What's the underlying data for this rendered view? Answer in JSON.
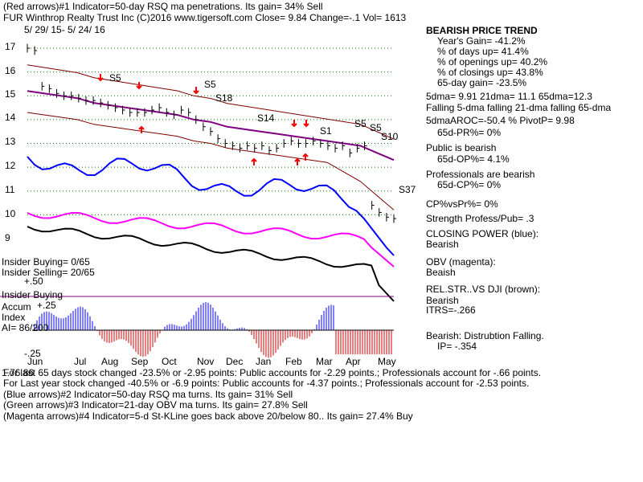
{
  "header": {
    "line1": "(Red arrows)#1 Indicator=50-day RSQ ma penetrations. Its gain= 34% Sell",
    "line2": "FUR  Winthrop Realty Trust Inc  (C)2016 www.tigersoft.com    Close=  9.84  Change=-.1 Vol= 1613",
    "daterange": "5/ 29/ 15- 5/ 24/ 16"
  },
  "right_panel": {
    "title": "BEARISH PRICE TREND",
    "year_gain": "Year's Gain= -41.2%",
    "days_up": "% of days up= 41.4%",
    "openings_up": "% of openings up= 40.2%",
    "closings_up": "% of closings up= 43.8%",
    "gain65": "65-day gain= -23.5%",
    "dma": "5dma= 9.91 21dma= 11.1 65dma=12.3",
    "falling": "Falling 5-dma falling 21-dma falling 65-dma",
    "aroc": "5dmaAROC=-50.4 %  PivotP= 9.98",
    "pr65": "65d-PR%= 0%",
    "public": "Public is bearish",
    "op65": "65d-OP%= 4.1%",
    "professionals": "Professionals are bearish",
    "cp65": "65d-CP%= 0%",
    "cpvspr": "CP%vsPr%=  0%",
    "strength": "Strength Profess/Pub= .3",
    "closing_power": "CLOSING POWER (blue):",
    "cp_state": "Bearish",
    "obv": "OBV (magenta):",
    "obv_state": "Beaish",
    "relstr": "REL.STR..VS DJI (brown):",
    "relstr_state": "Bearish",
    "itrs": "ITRS=-.266",
    "distribution": "Bearish: Distrubtion Falling.",
    "ip": "IP= -.354"
  },
  "left_labels": {
    "insider_buying": "Insider Buying= 0/65",
    "insider_selling": "Insider Selling= 20/65",
    "plus50": "+.50",
    "insider_buying2": "Insider Buying",
    "accum": "Accum",
    "plus25": "+.25",
    "index": "Index",
    "ai": "AI= 86/200",
    "minus25": "-.25"
  },
  "footer": {
    "line1": "For last 65 days stock changed -23.5% or -2.95 points:  Public accounts for -2.29 points.;  Professionals account for -.66 points.",
    "line2": "For Last year stock changed -40.5% or -6.9 points:  Public accounts for -4.37 points.;  Professionals account for -2.53 points.",
    "line3": "(Blue arrows)#2 Indicator=50-day RSQ ma turns. Its gain= 31% Sell",
    "line4": "(Green arrows)#3 Indicator=21-day OBV ma turns. Its gain= 27.8% Sell",
    "line5": "(Magenta arrows)#4 Indicator=5-d St-KLine goes back above 20/below 80.. Its gain= 27.4% Buy"
  },
  "overlap_label": "1.76.86",
  "colors": {
    "price": "#000000",
    "ma": "#800080",
    "band": "#800000",
    "closing_power": "#0000ff",
    "obv": "#ff00ff",
    "relstr": "#000000",
    "grid": "#008000",
    "accum_pos": "#0000ff",
    "accum_neg": "#cc0000",
    "arrow": "#ff0000"
  },
  "chart_data": {
    "type": "line",
    "y_ticks": [
      "17",
      "16",
      "15",
      "14",
      "13",
      "12",
      "11",
      "10",
      "9"
    ],
    "y_tick_values": [
      17,
      16,
      15,
      14,
      13,
      12,
      11,
      10,
      9
    ],
    "x_months": [
      "Jun",
      "Jul",
      "Aug",
      "Sep",
      "Oct",
      "Nov",
      "Dec",
      "Jan",
      "Feb",
      "Mar",
      "Apr",
      "May"
    ],
    "signals": [
      {
        "label": "S5",
        "x": "Aug"
      },
      {
        "label": "S5",
        "x": "Nov"
      },
      {
        "label": "S18",
        "x": "Nov"
      },
      {
        "label": "S14",
        "x": "Jan"
      },
      {
        "label": "S1",
        "x": "Mar"
      },
      {
        "label": "S5",
        "x": "Apr"
      },
      {
        "label": "S5",
        "x": "Apr"
      },
      {
        "label": "S10",
        "x": "May"
      },
      {
        "label": "S37",
        "x": "May"
      }
    ],
    "price_close": [
      17.0,
      16.9,
      15.4,
      15.3,
      15.1,
      15.0,
      15.0,
      14.9,
      14.8,
      14.8,
      14.7,
      14.6,
      14.5,
      14.4,
      14.3,
      14.3,
      14.3,
      14.4,
      14.5,
      14.3,
      14.2,
      14.4,
      14.3,
      14.0,
      13.7,
      13.5,
      13.2,
      13.0,
      12.9,
      12.8,
      12.9,
      12.8,
      12.9,
      12.7,
      12.8,
      13.0,
      13.1,
      13.0,
      13.0,
      13.1,
      13.0,
      12.9,
      12.8,
      12.9,
      12.6,
      12.8,
      12.9,
      10.4,
      10.1,
      9.9,
      9.84
    ],
    "ma65": [
      15.2,
      15.1,
      15.0,
      14.9,
      14.7,
      14.6,
      14.5,
      14.4,
      14.3,
      14.2,
      14.0,
      13.9,
      13.7,
      13.6,
      13.5,
      13.4,
      13.3,
      13.2,
      13.1,
      13.0,
      12.9,
      12.6,
      12.3
    ],
    "accum_index_range": [
      -0.25,
      0.5
    ],
    "accum_index_current": -0.354
  }
}
